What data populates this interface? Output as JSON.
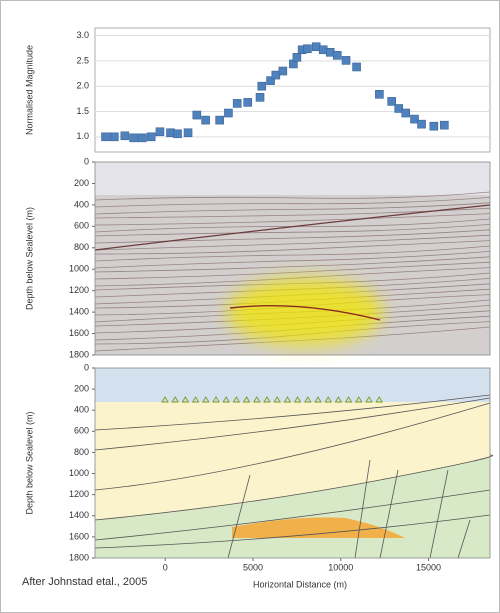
{
  "chart_data": [
    {
      "type": "scatter",
      "ylabel": "Normalised Magnitude",
      "color": "#4f81bd",
      "x": [
        -3400,
        -2900,
        -2300,
        -1800,
        -1300,
        -800,
        -300,
        300,
        700,
        1300,
        1800,
        2300,
        3100,
        3600,
        4100,
        4700,
        5400,
        5500,
        6000,
        6300,
        6700,
        7300,
        7500,
        7800,
        8100,
        8600,
        9000,
        9400,
        9800,
        10300,
        10900,
        12200,
        12900,
        13300,
        13700,
        14200,
        14600,
        15300,
        15900
      ],
      "y": [
        1.0,
        1.0,
        1.02,
        0.98,
        0.98,
        1.0,
        1.1,
        1.08,
        1.06,
        1.08,
        1.43,
        1.33,
        1.33,
        1.47,
        1.66,
        1.68,
        1.78,
        2.0,
        2.11,
        2.22,
        2.3,
        2.44,
        2.57,
        2.72,
        2.74,
        2.78,
        2.72,
        2.67,
        2.61,
        2.51,
        2.38,
        1.84,
        1.7,
        1.56,
        1.47,
        1.35,
        1.25,
        1.21,
        1.23
      ],
      "xlim": [
        -4000,
        18500
      ],
      "ylim": [
        0.7,
        3.15
      ],
      "yticks": [
        {
          "value": 1,
          "label": "1.0"
        },
        {
          "value": 1.5,
          "label": "1.5"
        },
        {
          "value": 2,
          "label": "2.0"
        },
        {
          "value": 2.5,
          "label": "2.5"
        },
        {
          "value": 3,
          "label": "3.0"
        }
      ],
      "grid": true
    },
    {
      "type": "seismic",
      "ylabel": "Depth below Sealevel (m)",
      "ylim": [
        1800,
        0
      ],
      "yticks": [
        0,
        200,
        400,
        600,
        800,
        1000,
        1200,
        1400,
        1600,
        1800
      ]
    },
    {
      "type": "section",
      "ylabel": "Depth below Sealevel (m)",
      "xlabel": "Horizontal Distance (m)",
      "xlim": [
        -4000,
        18500
      ],
      "ylim": [
        1800,
        0
      ],
      "xticks": [
        0,
        5000,
        10000,
        15000
      ],
      "yticks": [
        0,
        200,
        400,
        600,
        800,
        1000,
        1200,
        1400,
        1600,
        1800
      ]
    }
  ],
  "caption": "After Johnstad etal., 2005"
}
